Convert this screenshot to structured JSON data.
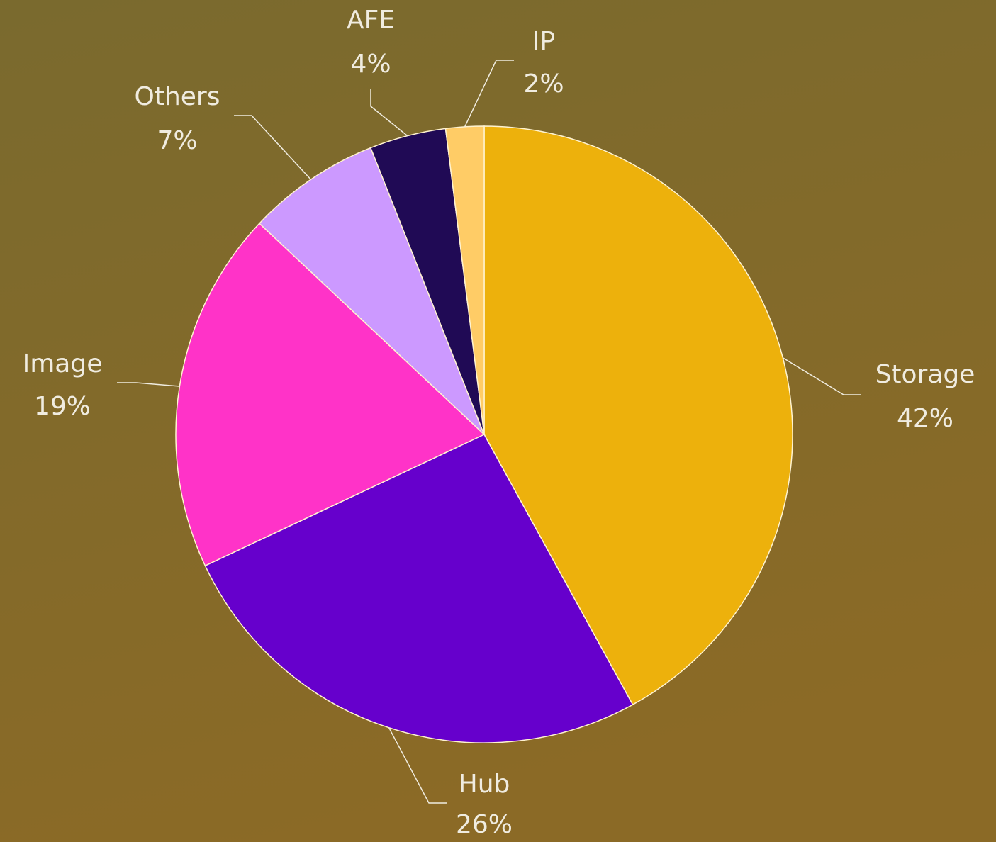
{
  "chart_data": {
    "type": "pie",
    "categories": [
      "Storage",
      "Hub",
      "Image",
      "Others",
      "AFE",
      "IP"
    ],
    "values": [
      42,
      26,
      19,
      7,
      4,
      2
    ],
    "value_labels": [
      "42%",
      "26%",
      "19%",
      "7%",
      "4%",
      "2%"
    ],
    "colors": [
      "#edb10c",
      "#6600cc",
      "#ff33c8",
      "#cc99ff",
      "#200a55",
      "#ffcc66"
    ]
  }
}
